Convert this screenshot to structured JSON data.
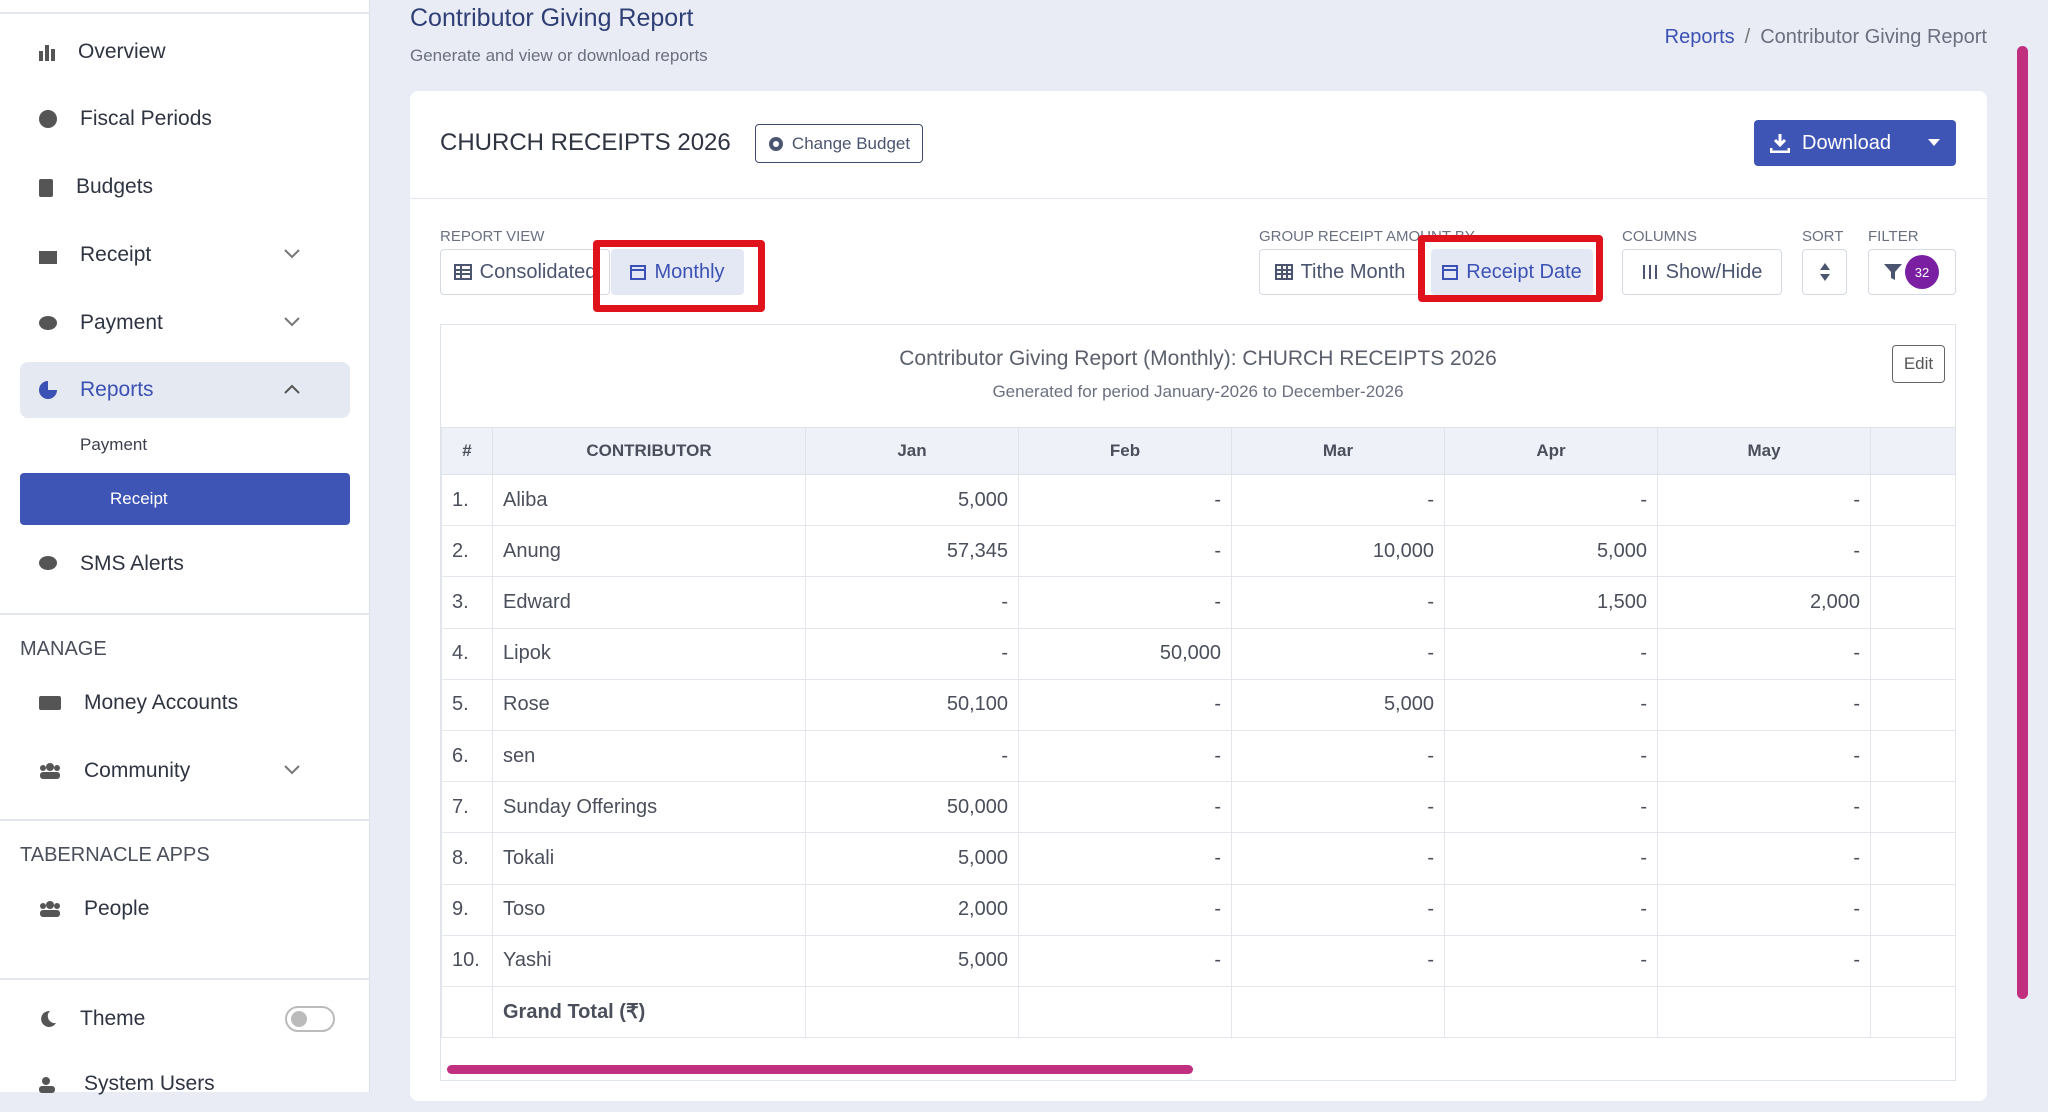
{
  "sidebar": {
    "nav": [
      "Overview",
      "Fiscal Periods",
      "Budgets",
      "Receipt",
      "Payment",
      "Reports"
    ],
    "reports_sub": [
      "Payment",
      "Receipt"
    ],
    "sms": "SMS Alerts",
    "manage": {
      "heading": "MANAGE",
      "items": [
        "Money Accounts",
        "Community"
      ]
    },
    "apps": {
      "heading": "TABERNACLE APPS",
      "items": [
        "People"
      ]
    },
    "theme": "Theme",
    "system_users": "System Users"
  },
  "header": {
    "title": "Contributor Giving Report",
    "subtitle": "Generate and view or download reports",
    "breadcrumb": [
      "Reports",
      "/",
      "Contributor Giving Report"
    ]
  },
  "card": {
    "title": "CHURCH RECEIPTS 2026",
    "change_budget": "Change Budget",
    "download": "Download"
  },
  "toolbar": {
    "report_view": {
      "label": "REPORT VIEW",
      "options": [
        "Consolidated",
        "Monthly"
      ]
    },
    "group_by": {
      "label": "GROUP RECEIPT AMOUNT BY",
      "options": [
        "Tithe Month",
        "Receipt Date"
      ]
    },
    "columns": {
      "label": "COLUMNS",
      "button": "Show/Hide"
    },
    "sort": {
      "label": "SORT"
    },
    "filter": {
      "label": "FILTER",
      "badge": "32"
    }
  },
  "report": {
    "title": "Contributor Giving Report (Monthly): CHURCH RECEIPTS 2026",
    "subtitle": "Generated for period January-2026 to December-2026",
    "edit": "Edit"
  },
  "table": {
    "headers": [
      "#",
      "CONTRIBUTOR",
      "Jan",
      "Feb",
      "Mar",
      "Apr",
      "May"
    ],
    "rows": [
      [
        "1.",
        "Aliba",
        "5,000",
        "-",
        "-",
        "-",
        "-"
      ],
      [
        "2.",
        "Anung",
        "57,345",
        "-",
        "10,000",
        "5,000",
        "-"
      ],
      [
        "3.",
        "Edward",
        "-",
        "-",
        "-",
        "1,500",
        "2,000"
      ],
      [
        "4.",
        "Lipok",
        "-",
        "50,000",
        "-",
        "-",
        "-"
      ],
      [
        "5.",
        "Rose",
        "50,100",
        "-",
        "5,000",
        "-",
        "-"
      ],
      [
        "6.",
        "sen",
        "-",
        "-",
        "-",
        "-",
        "-"
      ],
      [
        "7.",
        "Sunday Offerings",
        "50,000",
        "-",
        "-",
        "-",
        "-"
      ],
      [
        "8.",
        "Tokali",
        "5,000",
        "-",
        "-",
        "-",
        "-"
      ],
      [
        "9.",
        "Toso",
        "2,000",
        "-",
        "-",
        "-",
        "-"
      ],
      [
        "10.",
        "Yashi",
        "5,000",
        "-",
        "-",
        "-",
        "-"
      ]
    ],
    "grand_total": "Grand Total (₹)"
  }
}
